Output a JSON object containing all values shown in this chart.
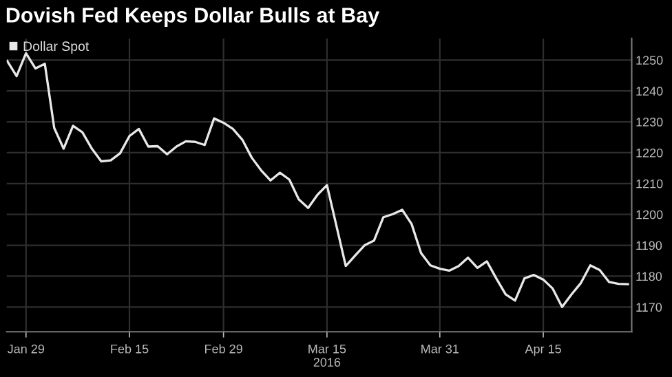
{
  "chart_data": {
    "type": "line",
    "title": "Dovish Fed Keeps Dollar Bulls at Bay",
    "categories": [
      null,
      null,
      "Jan 29",
      null,
      null,
      null,
      null,
      null,
      null,
      null,
      null,
      null,
      null,
      "Feb 15",
      null,
      null,
      null,
      null,
      null,
      null,
      null,
      null,
      null,
      "Feb 29",
      null,
      null,
      null,
      null,
      null,
      null,
      null,
      null,
      null,
      null,
      "Mar 15\n2016",
      null,
      null,
      null,
      null,
      null,
      null,
      null,
      null,
      null,
      null,
      null,
      "Mar 31",
      null,
      null,
      null,
      null,
      null,
      null,
      null,
      null,
      null,
      null,
      "Apr 15",
      null,
      null,
      null,
      null,
      null,
      null,
      null,
      null,
      null
    ],
    "series": [
      {
        "name": "Dollar Spot",
        "color": "#e8e8e8",
        "values": [
          1249.7,
          1244.8,
          1252.2,
          1247.3,
          1248.8,
          1228,
          1221.3,
          1228.7,
          1226.6,
          1221.3,
          1217.2,
          1217.5,
          1219.8,
          1225.4,
          1227.7,
          1222,
          1222.1,
          1219.5,
          1222,
          1223.7,
          1223.5,
          1222.5,
          1231.1,
          1229.7,
          1227.7,
          1224.2,
          1218.4,
          1214.3,
          1211,
          1213.5,
          1211.3,
          1204.9,
          1202.1,
          1206.4,
          1209.5,
          1196.4,
          1183.3,
          1186.7,
          1190,
          1191.5,
          1199.1,
          1200.1,
          1201.5,
          1196.9,
          1187.5,
          1183.5,
          1182.4,
          1181.8,
          1183.3,
          1186,
          1182.7,
          1184.8,
          1179.3,
          1174.1,
          1172.1,
          1179.3,
          1180.4,
          1178.9,
          1176,
          1170,
          1174.1,
          1177.8,
          1183.5,
          1182,
          1178.1,
          1177.5,
          1177.4
        ]
      }
    ],
    "ylim": [
      1162,
      1257
    ],
    "yticks": [
      1170,
      1180,
      1190,
      1200,
      1210,
      1220,
      1230,
      1240,
      1250
    ],
    "grid": true,
    "legend": "top left",
    "marker": "none",
    "line_style": "solid"
  }
}
